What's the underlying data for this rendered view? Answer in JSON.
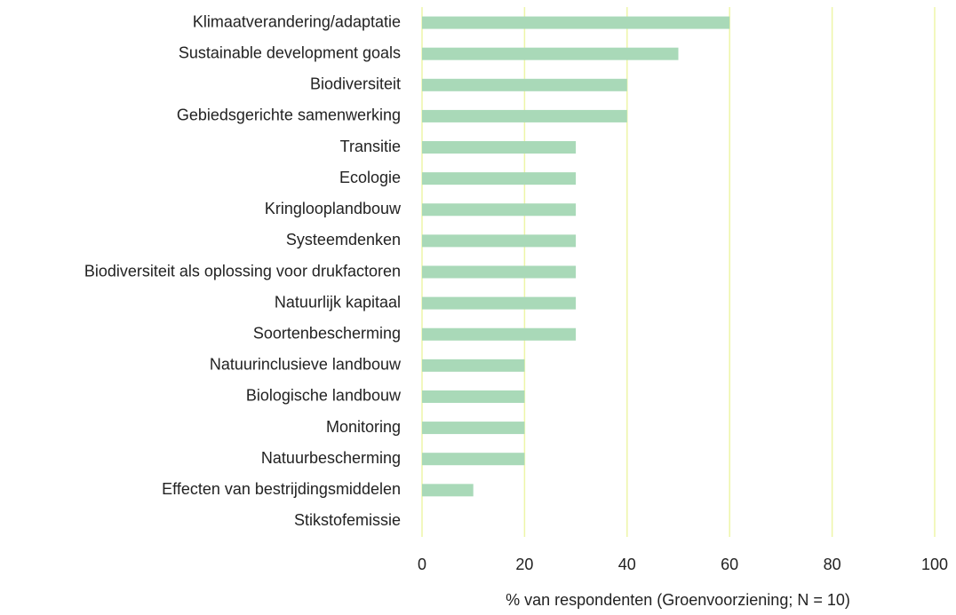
{
  "chart_data": {
    "type": "barh",
    "xlabel": "% van respondenten (Groenvoorziening; N = 10)",
    "categories": [
      "Klimaatverandering/adaptatie",
      "Sustainable development goals",
      "Biodiversiteit",
      "Gebiedsgerichte samenwerking",
      "Transitie",
      "Ecologie",
      "Kringlooplandbouw",
      "Systeemdenken",
      "Biodiversiteit als oplossing voor drukfactoren",
      "Natuurlijk kapitaal",
      "Soortenbescherming",
      "Natuurinclusieve landbouw",
      "Biologische landbouw",
      "Monitoring",
      "Natuurbescherming",
      "Effecten van bestrijdingsmiddelen",
      "Stikstofemissie"
    ],
    "values": [
      60,
      50,
      40,
      40,
      30,
      30,
      30,
      30,
      30,
      30,
      30,
      20,
      20,
      20,
      20,
      10,
      0
    ],
    "color": "#a9d9b8",
    "xlim": [
      0,
      100
    ],
    "xticks": [
      0,
      20,
      40,
      60,
      80,
      100
    ],
    "grid": true,
    "grid_color": "#eef5a8"
  }
}
